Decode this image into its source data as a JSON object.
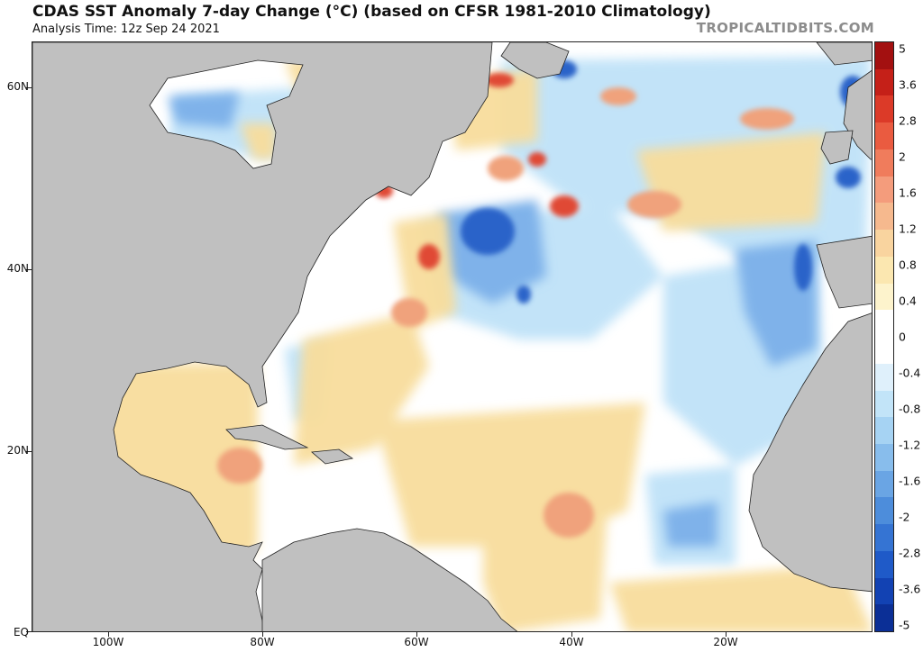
{
  "header": {
    "title": "CDAS SST Anomaly 7-day Change (°C) (based on CFSR 1981-2010 Climatology)",
    "analysis_time": "Analysis Time: 12z Sep 24 2021",
    "credit": "TROPICALTIDBITS.COM"
  },
  "map": {
    "lat_labels": [
      "60N",
      "40N",
      "20N",
      "EQ"
    ],
    "lon_labels": [
      "100W",
      "80W",
      "60W",
      "40W",
      "20W"
    ],
    "land_color": "#c0c0c0",
    "ocean_color": "#ffffff"
  },
  "colorbar": {
    "labels": [
      "5",
      "3.6",
      "2.8",
      "2",
      "1.6",
      "1.2",
      "0.8",
      "0.4",
      "0",
      "-0.4",
      "-0.8",
      "-1.2",
      "-1.6",
      "-2",
      "-2.8",
      "-3.6",
      "-5"
    ],
    "colors": [
      "#a31010",
      "#c52018",
      "#dc3a28",
      "#ea5b40",
      "#f07c5c",
      "#f49c7c",
      "#f6b98e",
      "#f9d49f",
      "#fbe7b0",
      "#fdf3cc",
      "#ffffff",
      "#ffffff",
      "#dff0fb",
      "#c2e4f8",
      "#a6d3f3",
      "#88bdec",
      "#6aa5e4",
      "#4d8ddb",
      "#3574d3",
      "#1f5ac8",
      "#1242b3",
      "#0b2f96"
    ]
  }
}
